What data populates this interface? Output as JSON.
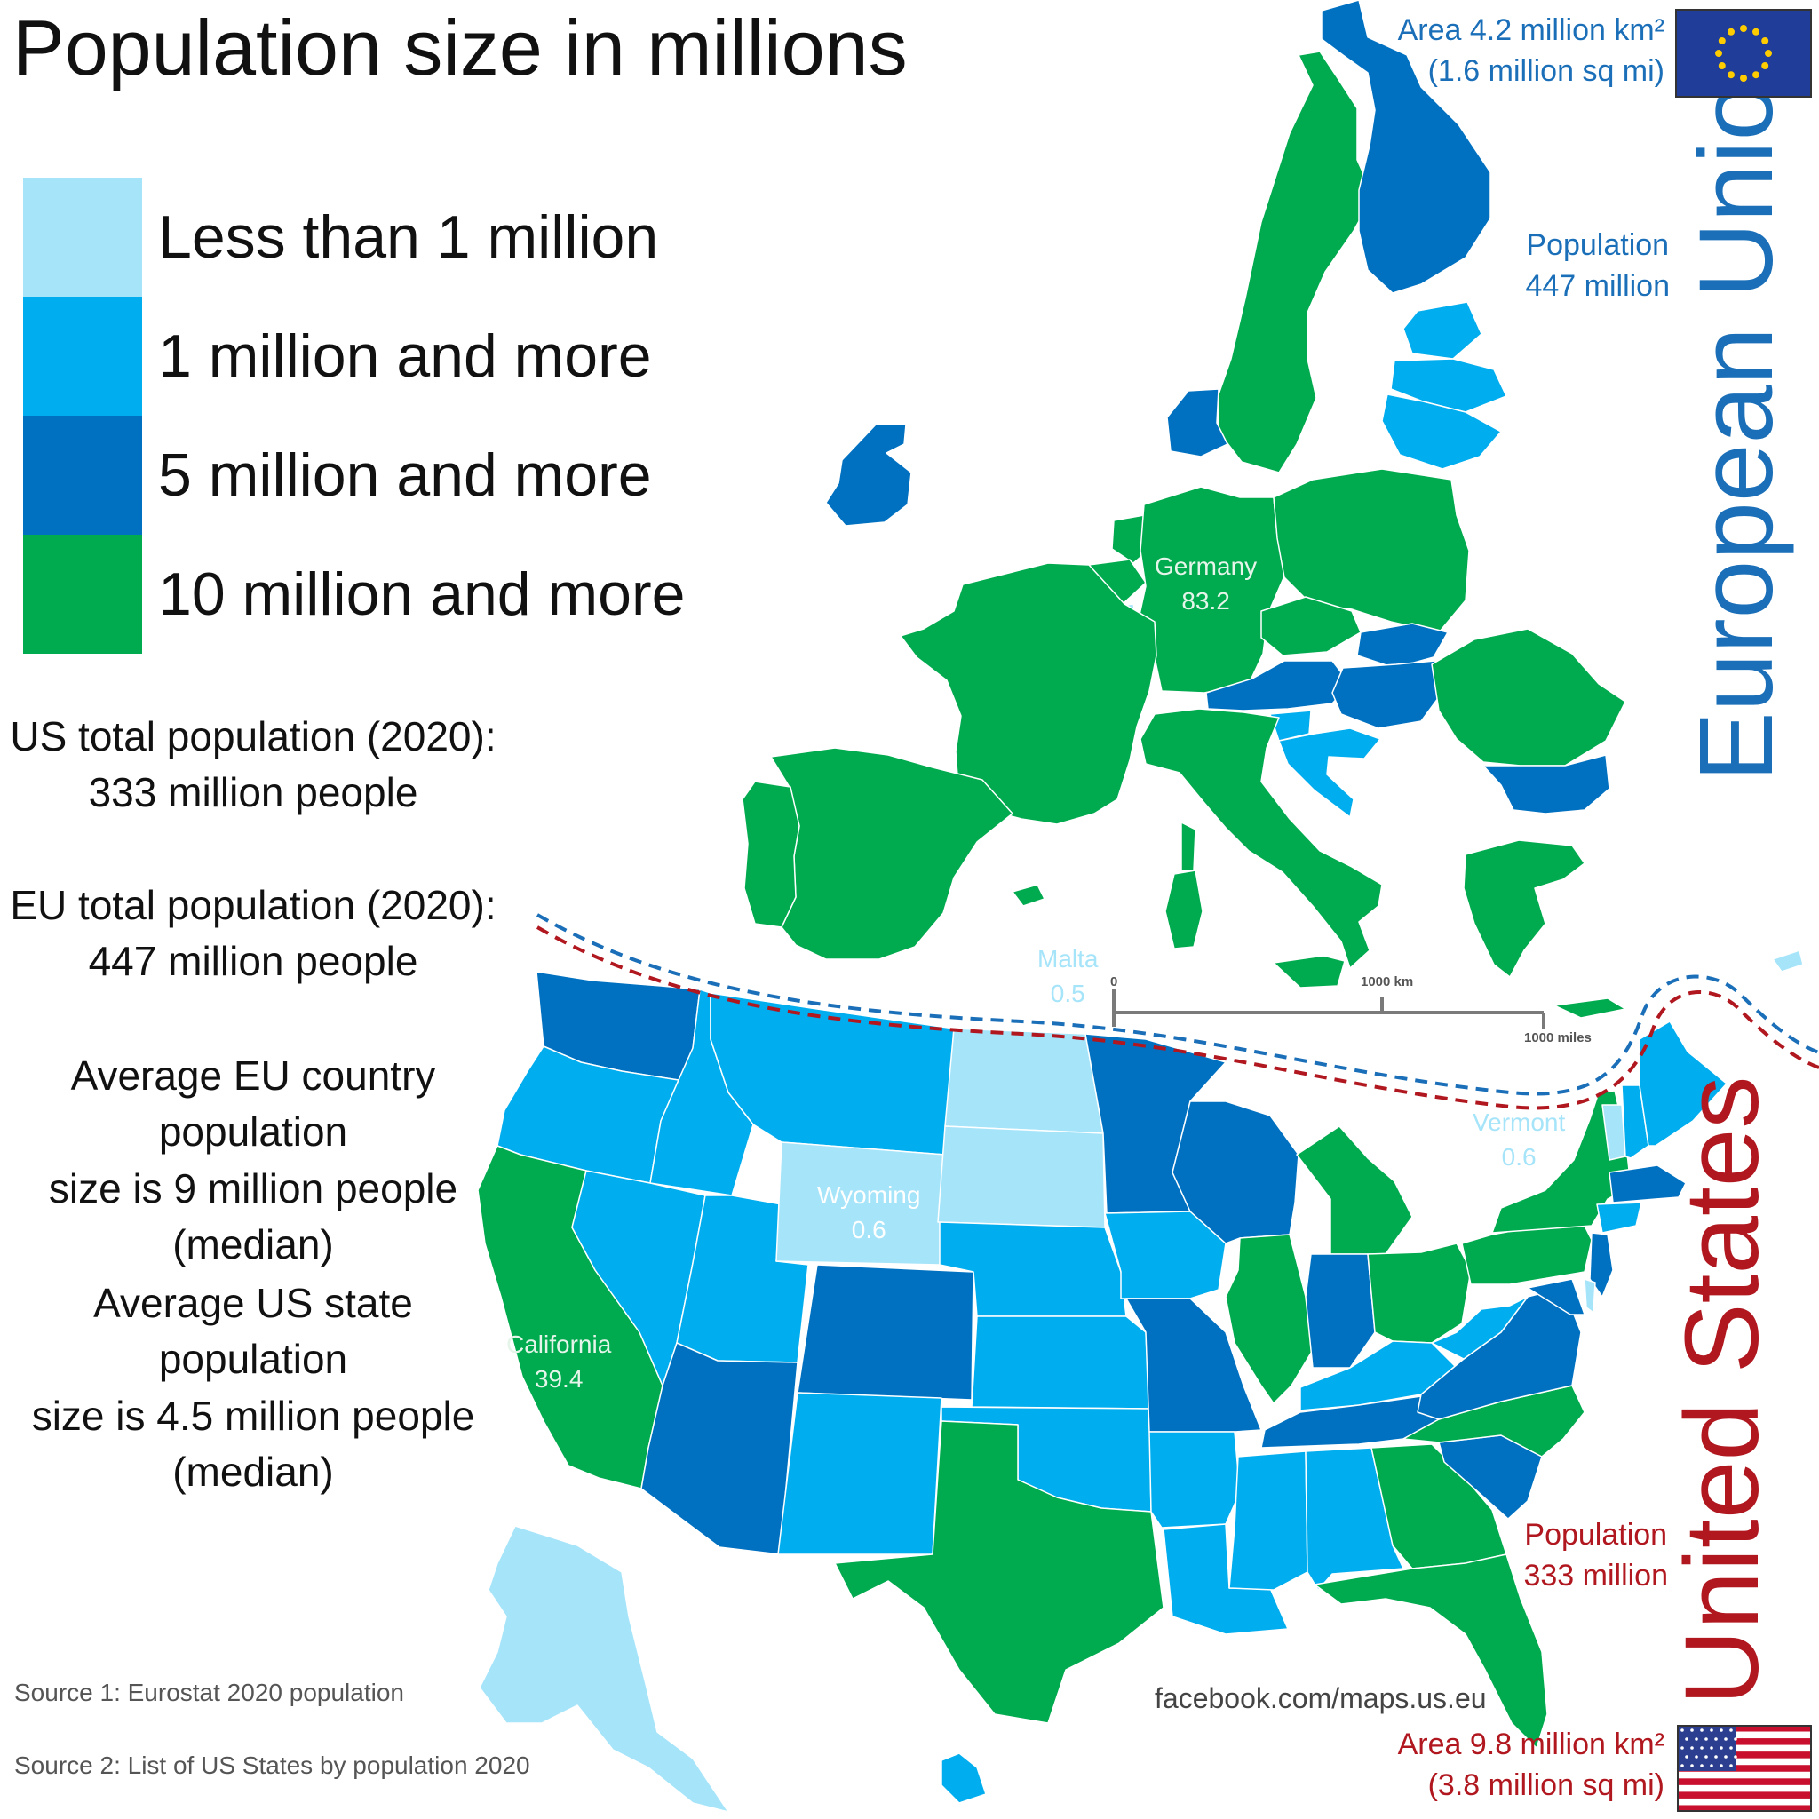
{
  "title": "Population size in millions",
  "legend": [
    {
      "label": "Less than 1 million",
      "color": "#a6e4fa"
    },
    {
      "label": "1 million and more",
      "color": "#00adee"
    },
    {
      "label": "5 million and more",
      "color": "#0071c1"
    },
    {
      "label": "10 million and more",
      "color": "#00aa4e"
    }
  ],
  "stats": {
    "us_total_line1": "US total population (2020):",
    "us_total_line2": "333 million people",
    "eu_total_line1": "EU total population (2020):",
    "eu_total_line2": "447 million people",
    "eu_avg_line1": "Average EU country population",
    "eu_avg_line2": "size is 9 million people",
    "eu_avg_line3": "(median)",
    "us_avg_line1": "Average US state population",
    "us_avg_line2": "size is 4.5 million people",
    "us_avg_line3": "(median)"
  },
  "sources": {
    "source1": "Source 1: Eurostat 2020 population",
    "source2": "Source 2: List of US States by population 2020"
  },
  "credit": "facebook.com/maps.us.eu",
  "eu": {
    "name": "European Union",
    "area_line1": "Area 4.2 million km²",
    "area_line2": "(1.6 million sq mi)",
    "population_label": "Population",
    "population_value": "447 million",
    "color": "#1a6fb8"
  },
  "us": {
    "name": "United States",
    "area_line1": "Area 9.8 million km²",
    "area_line2": "(3.8 million sq mi)",
    "population_label": "Population",
    "population_value": "333 million",
    "color": "#b0171f"
  },
  "map_labels": {
    "germany_name": "Germany",
    "germany_value": "83.2",
    "malta_name": "Malta",
    "malta_value": "0.5",
    "california_name": "California",
    "california_value": "39.4",
    "wyoming_name": "Wyoming",
    "wyoming_value": "0.6",
    "vermont_name": "Vermont",
    "vermont_value": "0.6"
  },
  "scale_bar": {
    "zero": "0",
    "km": "1000 km",
    "miles": "1000 miles"
  },
  "regions": [
    {
      "name": "Sweden",
      "category": 3
    },
    {
      "name": "Finland",
      "category": 2
    },
    {
      "name": "Estonia",
      "category": 1
    },
    {
      "name": "Latvia",
      "category": 1
    },
    {
      "name": "Lithuania",
      "category": 1
    },
    {
      "name": "Ireland",
      "category": 2
    },
    {
      "name": "Denmark",
      "category": 2
    },
    {
      "name": "Netherlands",
      "category": 3
    },
    {
      "name": "Belgium",
      "category": 3
    },
    {
      "name": "Luxembourg",
      "category": 0
    },
    {
      "name": "Germany",
      "category": 3
    },
    {
      "name": "Poland",
      "category": 3
    },
    {
      "name": "Czechia",
      "category": 3
    },
    {
      "name": "Slovakia",
      "category": 2
    },
    {
      "name": "Austria",
      "category": 2
    },
    {
      "name": "Hungary",
      "category": 2
    },
    {
      "name": "Slovenia",
      "category": 1
    },
    {
      "name": "Croatia",
      "category": 1
    },
    {
      "name": "Romania",
      "category": 3
    },
    {
      "name": "Bulgaria",
      "category": 2
    },
    {
      "name": "Greece",
      "category": 3
    },
    {
      "name": "Cyprus",
      "category": 0
    },
    {
      "name": "Crete",
      "category": 3
    },
    {
      "name": "France",
      "category": 3
    },
    {
      "name": "Corsica",
      "category": 3
    },
    {
      "name": "Spain",
      "category": 3
    },
    {
      "name": "Portugal",
      "category": 3
    },
    {
      "name": "Italy",
      "category": 3
    },
    {
      "name": "Sardinia",
      "category": 3
    },
    {
      "name": "Sicily",
      "category": 3
    },
    {
      "name": "Balearic Islands",
      "category": 3
    },
    {
      "name": "Washington",
      "category": 2
    },
    {
      "name": "Oregon",
      "category": 1
    },
    {
      "name": "California",
      "category": 3
    },
    {
      "name": "Idaho",
      "category": 1
    },
    {
      "name": "Nevada",
      "category": 1
    },
    {
      "name": "Utah",
      "category": 1
    },
    {
      "name": "Arizona",
      "category": 2
    },
    {
      "name": "Montana",
      "category": 1
    },
    {
      "name": "Wyoming",
      "category": 0
    },
    {
      "name": "Colorado",
      "category": 2
    },
    {
      "name": "New Mexico",
      "category": 1
    },
    {
      "name": "North Dakota",
      "category": 0
    },
    {
      "name": "South Dakota",
      "category": 0
    },
    {
      "name": "Nebraska",
      "category": 1
    },
    {
      "name": "Kansas",
      "category": 1
    },
    {
      "name": "Oklahoma",
      "category": 1
    },
    {
      "name": "Texas",
      "category": 3
    },
    {
      "name": "Minnesota",
      "category": 2
    },
    {
      "name": "Iowa",
      "category": 1
    },
    {
      "name": "Missouri",
      "category": 2
    },
    {
      "name": "Arkansas",
      "category": 1
    },
    {
      "name": "Louisiana",
      "category": 1
    },
    {
      "name": "Wisconsin",
      "category": 2
    },
    {
      "name": "Illinois",
      "category": 3
    },
    {
      "name": "Michigan",
      "category": 3
    },
    {
      "name": "Indiana",
      "category": 2
    },
    {
      "name": "Ohio",
      "category": 3
    },
    {
      "name": "Kentucky",
      "category": 1
    },
    {
      "name": "Tennessee",
      "category": 2
    },
    {
      "name": "Mississippi",
      "category": 1
    },
    {
      "name": "Alabama",
      "category": 1
    },
    {
      "name": "Georgia",
      "category": 3
    },
    {
      "name": "Florida",
      "category": 3
    },
    {
      "name": "South Carolina",
      "category": 2
    },
    {
      "name": "North Carolina",
      "category": 3
    },
    {
      "name": "Virginia",
      "category": 2
    },
    {
      "name": "West Virginia",
      "category": 1
    },
    {
      "name": "Pennsylvania",
      "category": 3
    },
    {
      "name": "New York",
      "category": 3
    },
    {
      "name": "New Jersey",
      "category": 2
    },
    {
      "name": "Maryland",
      "category": 2
    },
    {
      "name": "Delaware",
      "category": 0
    },
    {
      "name": "Vermont",
      "category": 0
    },
    {
      "name": "New Hampshire",
      "category": 1
    },
    {
      "name": "Maine",
      "category": 1
    },
    {
      "name": "Massachusetts",
      "category": 2
    },
    {
      "name": "Connecticut",
      "category": 1
    },
    {
      "name": "Alaska",
      "category": 0
    },
    {
      "name": "Hawaii",
      "category": 1
    }
  ]
}
